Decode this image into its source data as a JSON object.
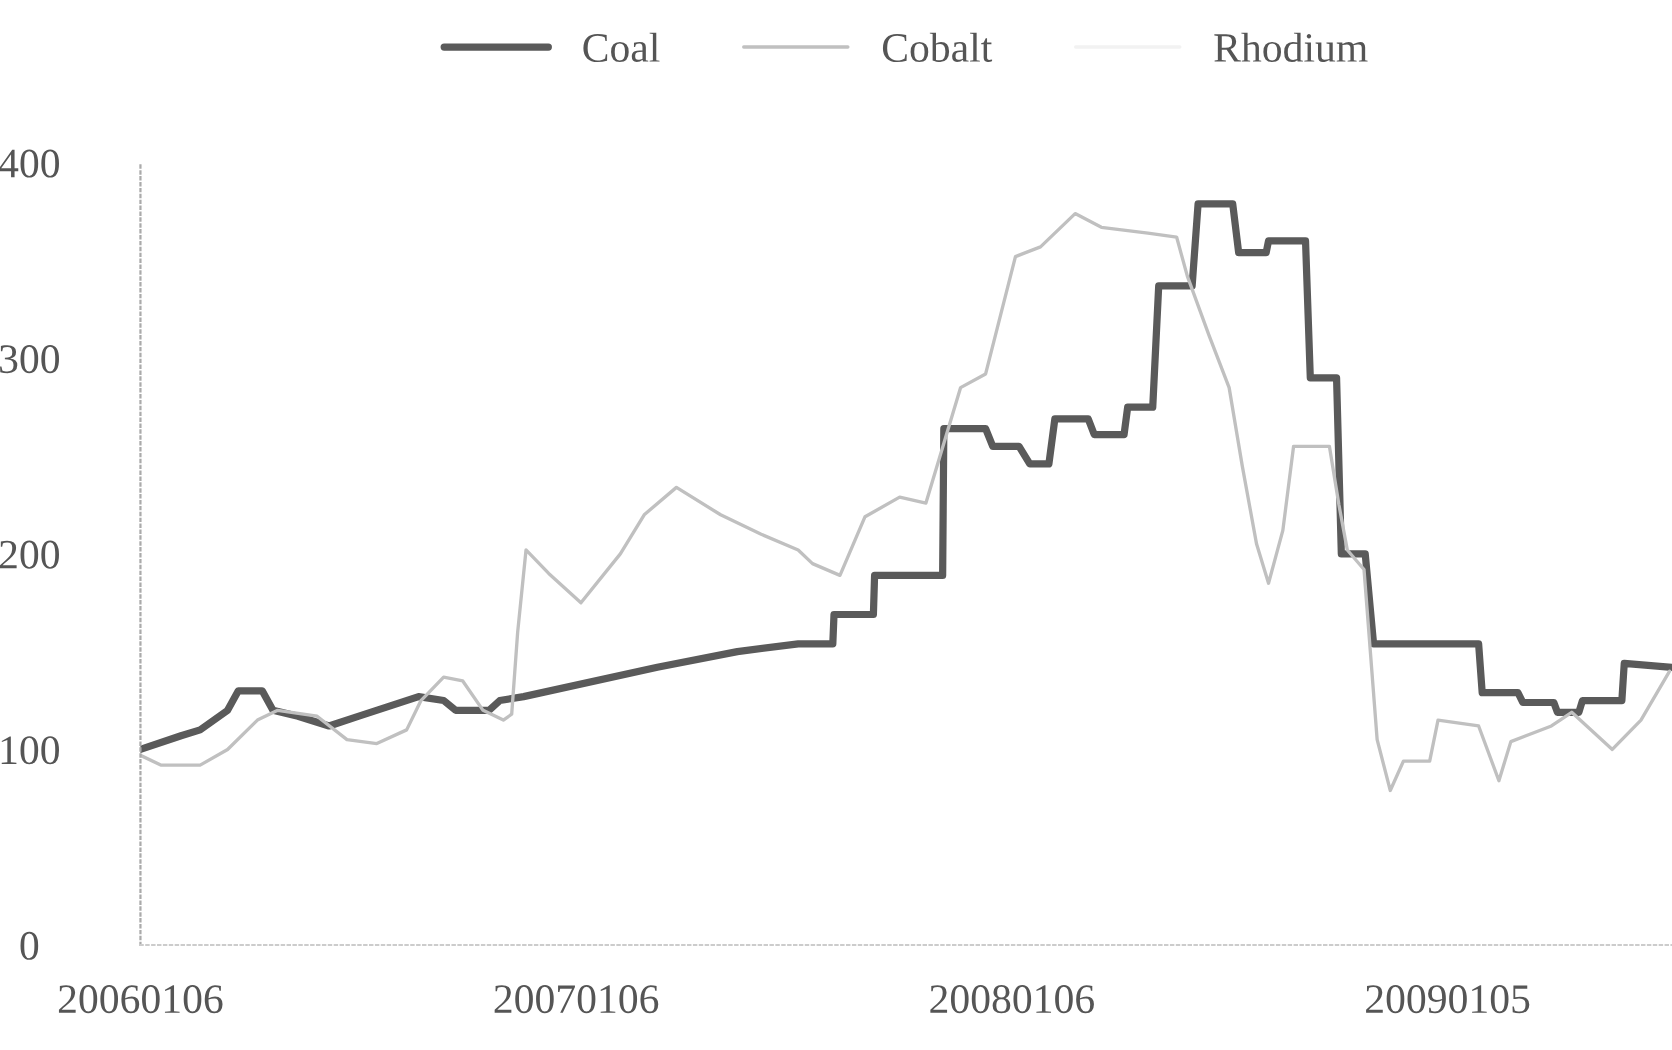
{
  "chart_data": {
    "type": "line",
    "xlim": [
      "2006-01-06",
      "2009-07-12"
    ],
    "xticks": [
      {
        "value": "2006-01-06",
        "label": "20060106"
      },
      {
        "value": "2007-01-06",
        "label": "20070106"
      },
      {
        "value": "2008-01-06",
        "label": "20080106"
      },
      {
        "value": "2009-01-05",
        "label": "20090105"
      }
    ],
    "ylim": [
      0,
      400
    ],
    "yticks": [
      0,
      100,
      200,
      300,
      400
    ],
    "legend": "top",
    "grid": false,
    "marker": "none",
    "line_style": "solid",
    "series": [
      {
        "name": "Coal",
        "color": "#5a5a5a",
        "x": [
          "2006-01-06",
          "2006-02-09",
          "2006-02-25",
          "2006-03-20",
          "2006-03-29",
          "2006-04-18",
          "2006-04-27",
          "2006-05-18",
          "2006-06-13",
          "2006-07-08",
          "2006-08-02",
          "2006-08-27",
          "2006-09-17",
          "2006-09-27",
          "2006-10-25",
          "2006-11-03",
          "2006-11-23",
          "2007-03-15",
          "2007-05-21",
          "2007-07-11",
          "2007-08-09",
          "2007-08-10",
          "2007-09-12",
          "2007-09-13",
          "2007-11-09",
          "2007-11-10",
          "2007-12-15",
          "2007-12-21",
          "2008-01-12",
          "2008-01-21",
          "2008-02-06",
          "2008-02-11",
          "2008-03-10",
          "2008-03-15",
          "2008-04-09",
          "2008-04-12",
          "2008-05-03",
          "2008-05-08",
          "2008-06-05",
          "2008-06-10",
          "2008-07-09",
          "2008-07-14",
          "2008-08-06",
          "2008-08-08",
          "2008-09-08",
          "2008-09-12",
          "2008-10-04",
          "2008-10-08",
          "2008-10-28",
          "2008-11-04",
          "2009-01-31",
          "2009-02-03",
          "2009-03-05",
          "2009-03-09",
          "2009-04-04",
          "2009-04-07",
          "2009-04-25",
          "2009-04-28",
          "2009-05-31",
          "2009-06-02",
          "2009-07-12"
        ],
        "values": [
          100,
          107,
          110,
          120,
          130,
          130,
          120,
          117,
          112,
          117,
          122,
          127,
          125,
          120,
          120,
          125,
          127,
          142,
          150,
          154,
          154,
          169,
          169,
          189,
          189,
          264,
          264,
          255,
          255,
          246,
          246,
          269,
          269,
          261,
          261,
          275,
          275,
          337,
          337,
          379,
          379,
          354,
          354,
          360,
          360,
          290,
          290,
          200,
          200,
          154,
          154,
          129,
          129,
          124,
          124,
          119,
          119,
          125,
          125,
          144,
          142
        ]
      },
      {
        "name": "Cobalt",
        "color": "#c0c0c0",
        "x": [
          "2006-01-06",
          "2006-01-23",
          "2006-02-25",
          "2006-03-20",
          "2006-04-14",
          "2006-05-01",
          "2006-06-03",
          "2006-06-28",
          "2006-07-23",
          "2006-08-17",
          "2006-08-29",
          "2006-09-17",
          "2006-10-03",
          "2006-10-20",
          "2006-11-06",
          "2006-11-13",
          "2006-11-18",
          "2006-11-25",
          "2006-12-14",
          "2007-01-10",
          "2007-02-12",
          "2007-03-04",
          "2007-03-31",
          "2007-05-07",
          "2007-06-10",
          "2007-07-11",
          "2007-07-23",
          "2007-08-15",
          "2007-09-05",
          "2007-10-04",
          "2007-10-26",
          "2007-11-24",
          "2007-12-15",
          "2008-01-09",
          "2008-01-30",
          "2008-02-28",
          "2008-03-21",
          "2008-04-29",
          "2008-05-23",
          "2008-06-01",
          "2008-06-19",
          "2008-07-06",
          "2008-07-17",
          "2008-07-29",
          "2008-08-08",
          "2008-08-20",
          "2008-08-29",
          "2008-09-28",
          "2008-10-06",
          "2008-10-13",
          "2008-10-27",
          "2008-11-07",
          "2008-11-18",
          "2008-11-29",
          "2008-12-21",
          "2008-12-28",
          "2009-01-31",
          "2009-02-17",
          "2009-02-27",
          "2009-04-02",
          "2009-04-19",
          "2009-05-23",
          "2009-06-16",
          "2009-07-10"
        ],
        "values": [
          97,
          92,
          92,
          100,
          115,
          120,
          117,
          105,
          103,
          110,
          125,
          137,
          135,
          120,
          115,
          118,
          160,
          202,
          190,
          175,
          200,
          220,
          234,
          220,
          210,
          202,
          195,
          189,
          219,
          229,
          226,
          285,
          292,
          352,
          357,
          374,
          367,
          364,
          362,
          342,
          312,
          285,
          245,
          205,
          185,
          212,
          255,
          255,
          225,
          202,
          192,
          105,
          79,
          94,
          94,
          115,
          112,
          84,
          104,
          112,
          119,
          100,
          115,
          140
        ]
      },
      {
        "name": "Rhodium",
        "color": "#f2f2f2"
      }
    ]
  }
}
